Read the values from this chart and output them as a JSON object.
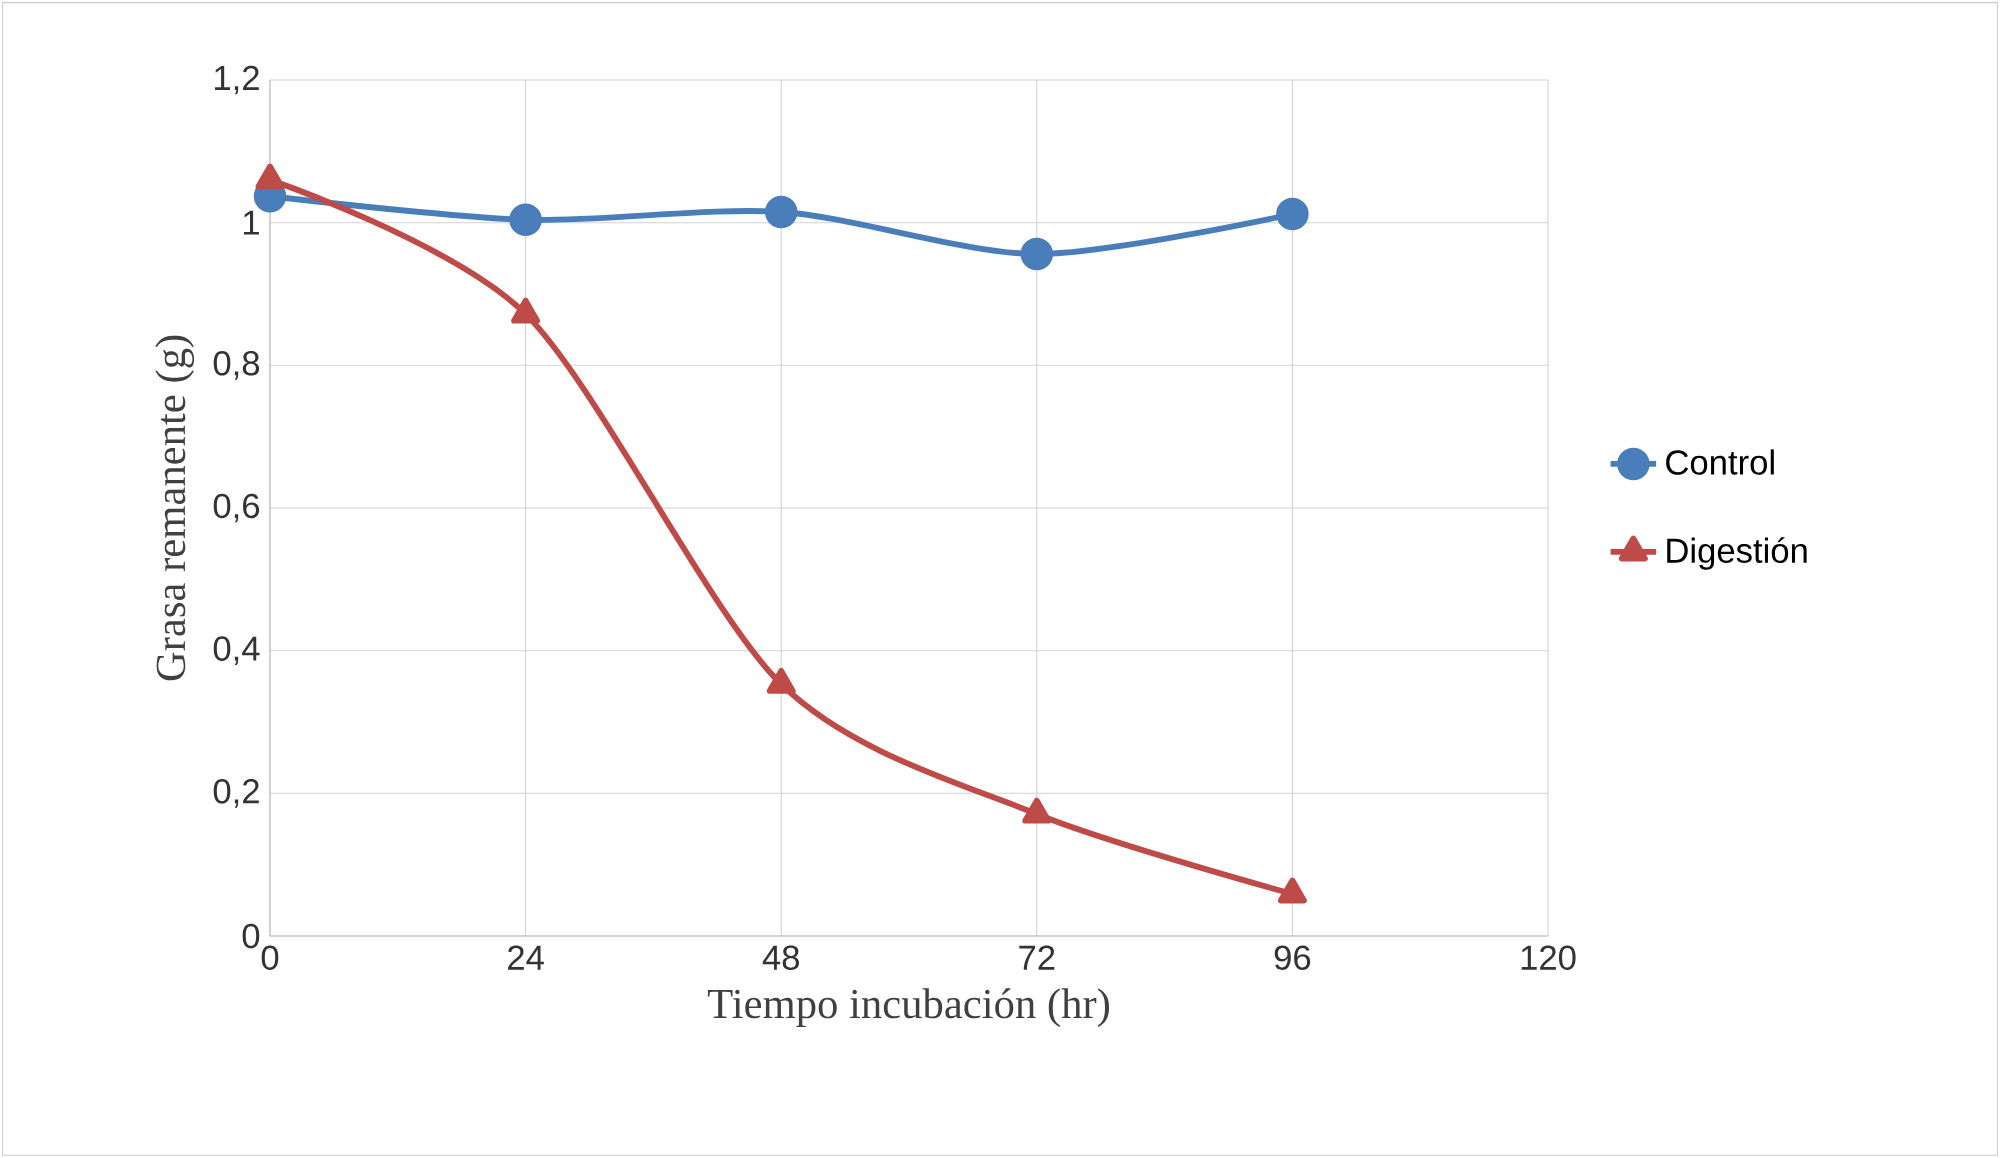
{
  "chart_data": {
    "type": "line",
    "xlabel": "Tiempo incubación (hr)",
    "ylabel": "Grasa remanente (g)",
    "x": [
      0,
      24,
      48,
      72,
      96
    ],
    "series": [
      {
        "name": "Control",
        "color": "#4a7ebb",
        "marker": "circle",
        "values": [
          1.037,
          1.004,
          1.015,
          0.956,
          1.012
        ]
      },
      {
        "name": "Digestión",
        "color": "#be4b48",
        "marker": "triangle",
        "values": [
          1.06,
          0.872,
          0.353,
          0.171,
          0.059
        ]
      }
    ],
    "xlim": [
      0,
      120
    ],
    "xticks": [
      0,
      24,
      48,
      72,
      96,
      120
    ],
    "ylim": [
      0,
      1.2
    ],
    "yticks": [
      {
        "value": 0,
        "label": "0"
      },
      {
        "value": 0.2,
        "label": "0,2"
      },
      {
        "value": 0.4,
        "label": "0,4"
      },
      {
        "value": 0.6,
        "label": "0,6"
      },
      {
        "value": 0.8,
        "label": "0,8"
      },
      {
        "value": 1,
        "label": "1"
      },
      {
        "value": 1.2,
        "label": "1,2"
      }
    ],
    "grid": true,
    "legend": "right",
    "line_style": "solid"
  }
}
